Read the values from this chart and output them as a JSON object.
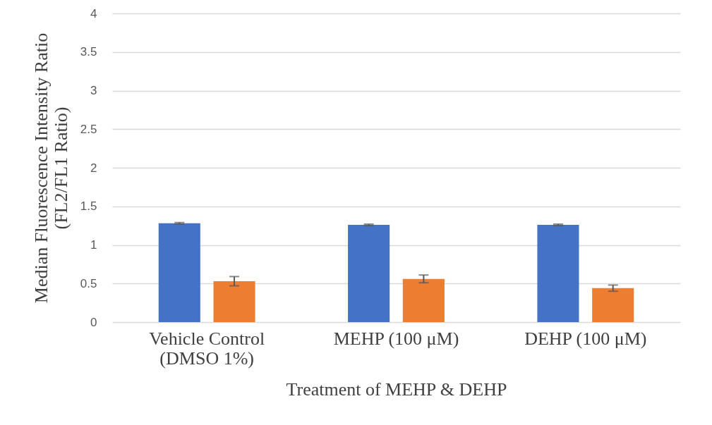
{
  "chart_data": {
    "type": "bar",
    "xlabel": "Treatment of MEHP & DEHP",
    "ylabel": "Median Fluorescence Intensity Ratio (FL2/FL1 Ratio)",
    "categories": [
      "Vehicle Control (DMSO 1%)",
      "MEHP (100 μM)",
      "DEHP (100 μM)"
    ],
    "series": [
      {
        "color": "#4472c4",
        "values": [
          1.28,
          1.26,
          1.26
        ],
        "errors": [
          0.01,
          0.01,
          0.01
        ]
      },
      {
        "color": "#ed7d31",
        "values": [
          0.53,
          0.56,
          0.44
        ],
        "errors": [
          0.06,
          0.05,
          0.04
        ]
      }
    ],
    "ylim": [
      0,
      4
    ],
    "yticks": [
      0,
      0.5,
      1,
      1.5,
      2,
      2.5,
      3,
      3.5,
      4
    ],
    "grid": "y",
    "legend": false
  }
}
